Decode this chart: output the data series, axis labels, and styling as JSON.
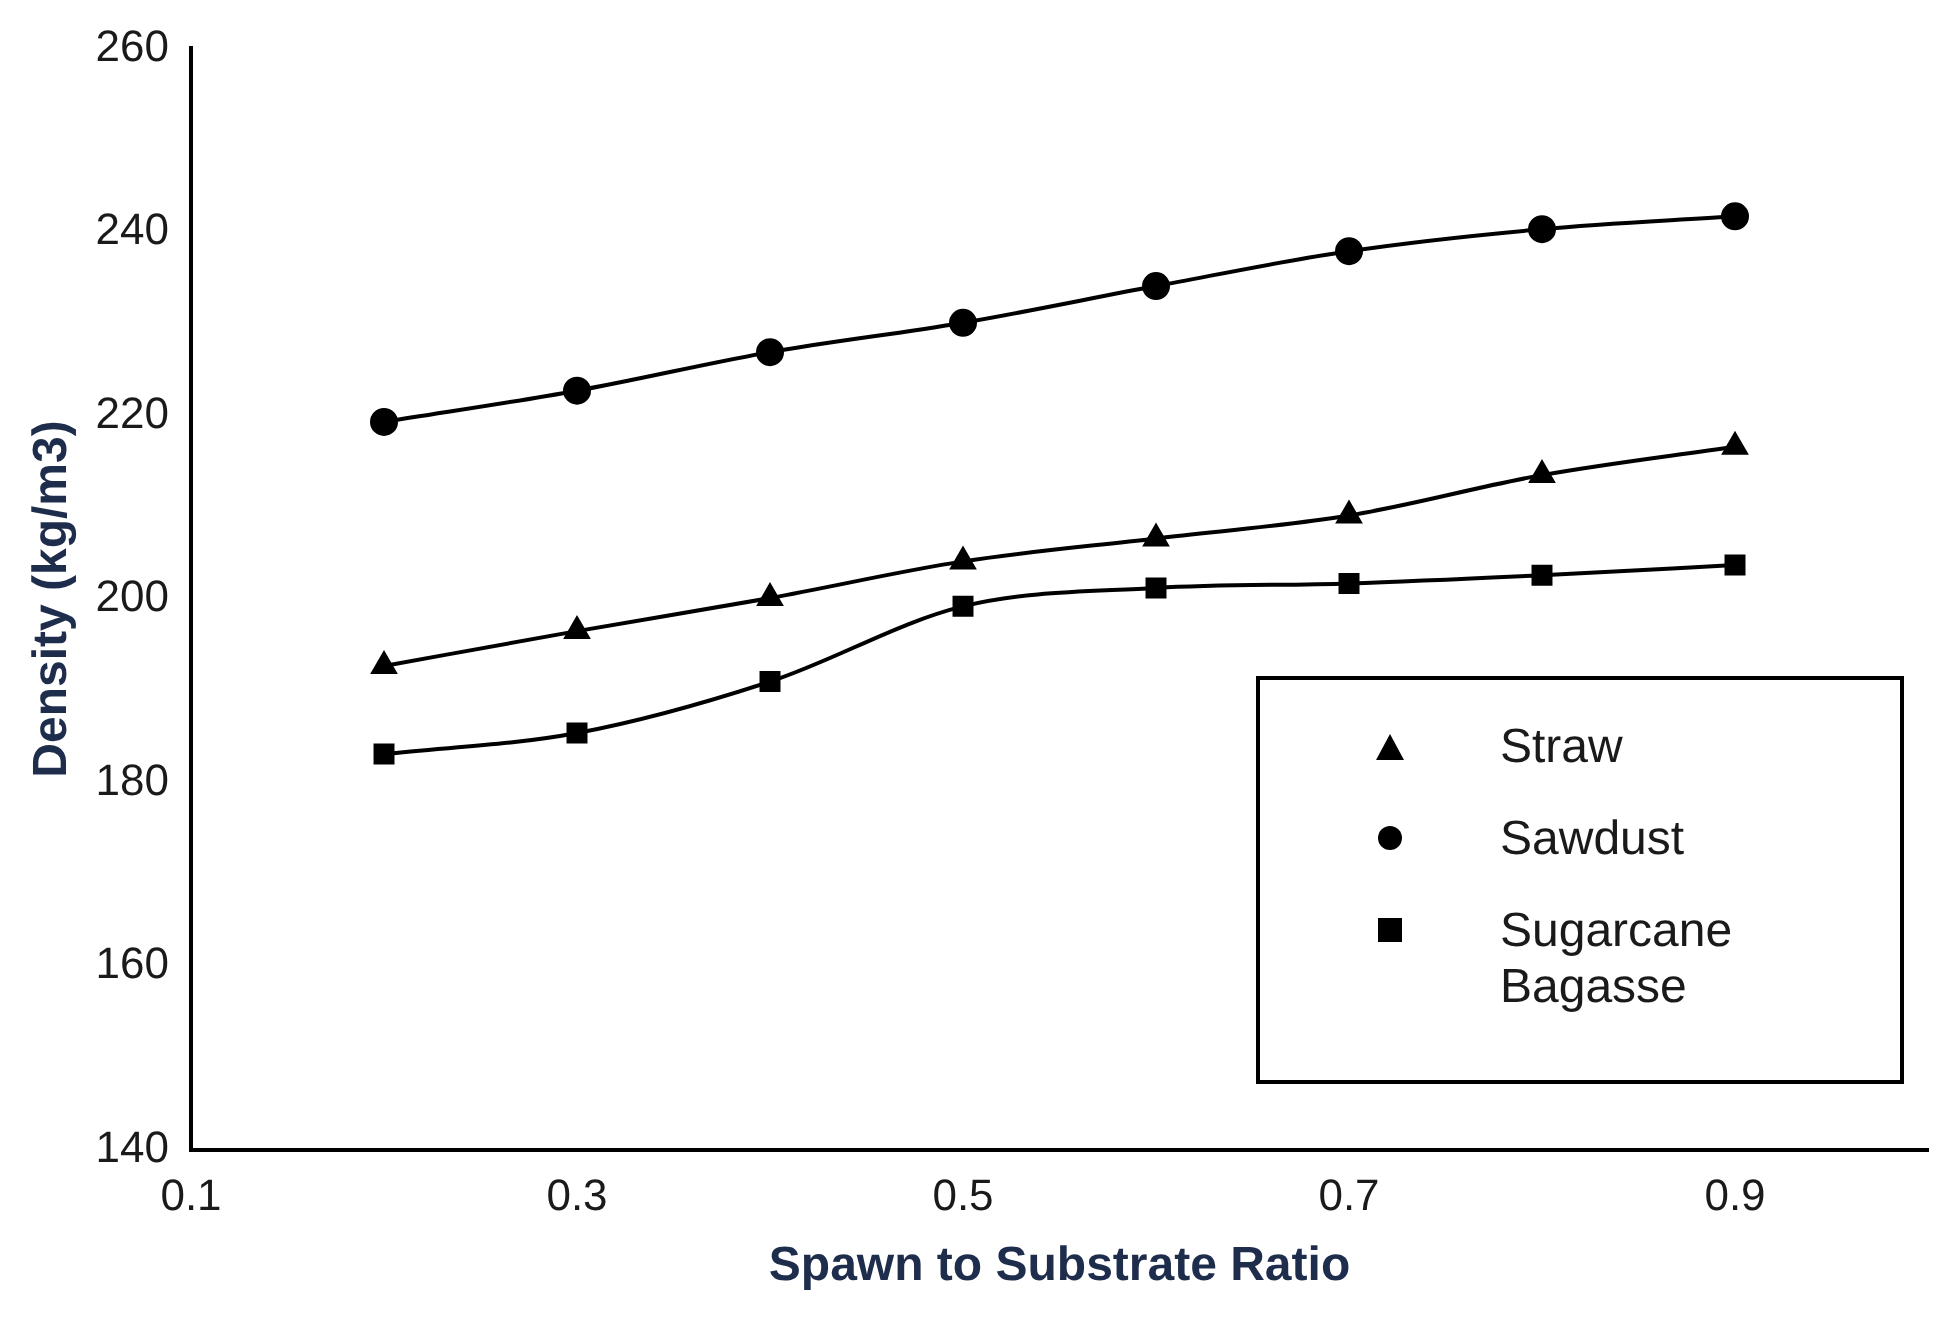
{
  "chart_data": {
    "type": "line",
    "xlabel": "Spawn to Substrate Ratio",
    "ylabel": "Density (kg/m3)",
    "x": [
      0.2,
      0.3,
      0.4,
      0.5,
      0.6,
      0.7,
      0.8,
      0.9
    ],
    "series": [
      {
        "name": "Straw",
        "color": "#000000",
        "marker": "triangle",
        "values": [
          192.7,
          196.5,
          200.1,
          204.1,
          206.6,
          209.1,
          213.5,
          216.6
        ]
      },
      {
        "name": "Sawdust",
        "color": "#000000",
        "marker": "circle",
        "values": [
          219.3,
          222.7,
          226.9,
          230.1,
          234.1,
          237.9,
          240.3,
          241.7
        ]
      },
      {
        "name": "Sugarcane Bagasse",
        "color": "#000000",
        "marker": "square",
        "values": [
          183.1,
          185.4,
          191.0,
          199.2,
          201.2,
          201.7,
          202.6,
          203.7
        ]
      }
    ],
    "xlim": [
      0.1,
      1.0
    ],
    "xticks": [
      0.1,
      0.3,
      0.5,
      0.7,
      0.9
    ],
    "ylim": [
      140,
      260
    ],
    "yticks": [
      140,
      160,
      180,
      200,
      220,
      240,
      260
    ],
    "grid": false,
    "legend": "bottom right",
    "line_style": "solid"
  }
}
